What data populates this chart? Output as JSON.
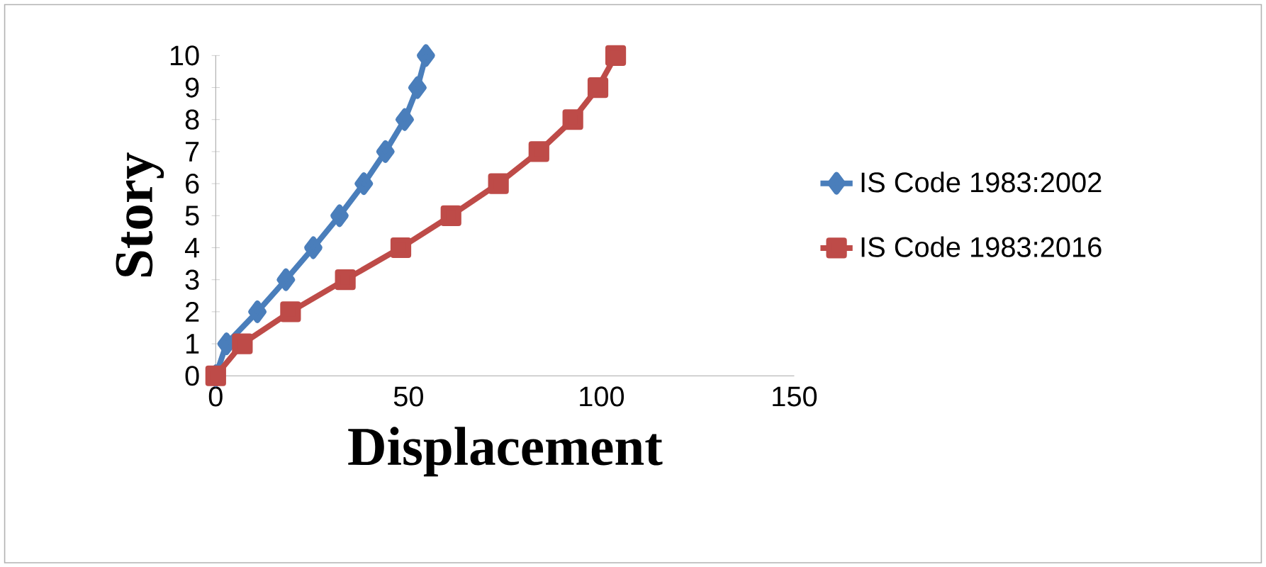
{
  "chart_data": {
    "type": "line",
    "xlabel": "Displacement",
    "ylabel": "Story",
    "xlim": [
      0,
      150
    ],
    "xticks": [
      0,
      50,
      100,
      150
    ],
    "ylim": [
      0,
      10
    ],
    "yticks": [
      0,
      1,
      2,
      3,
      4,
      5,
      6,
      7,
      8,
      9,
      10
    ],
    "legend": "right",
    "grid": false,
    "series": [
      {
        "name": "IS Code 1983:2002",
        "color": "#4a7ebb",
        "marker": "diamond",
        "x": [
          0,
          2.8,
          10.8,
          18.2,
          25.3,
          32.1,
          38.4,
          44,
          49,
          52.3,
          54.5
        ],
        "values": [
          0,
          1,
          2,
          3,
          4,
          5,
          6,
          7,
          8,
          9,
          10
        ]
      },
      {
        "name": "IS Code 1983:2016",
        "color": "#be4b48",
        "marker": "square",
        "x": [
          0,
          6.9,
          19.4,
          33.6,
          48,
          61,
          73.3,
          83.8,
          92.6,
          99.1,
          103.7
        ],
        "values": [
          0,
          1,
          2,
          3,
          4,
          5,
          6,
          7,
          8,
          9,
          10
        ]
      }
    ]
  }
}
